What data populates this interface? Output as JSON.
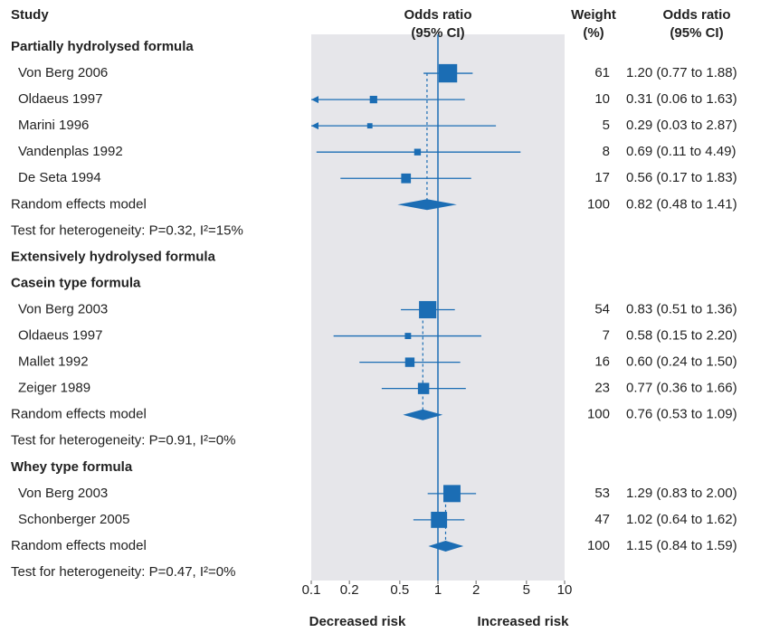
{
  "chart_data": {
    "type": "forest",
    "color": "#1b6db4",
    "panel_color": "#e6e6ea",
    "log_x": true,
    "xlim": [
      0.1,
      10
    ],
    "xticks": [
      0.1,
      0.2,
      0.5,
      1,
      2,
      5,
      10
    ],
    "reference": 1,
    "x_label_left": "Decreased risk",
    "x_label_right": "Increased risk",
    "headers": {
      "study": "Study",
      "plot": [
        "Odds ratio",
        "(95% CI)"
      ],
      "weight": [
        "Weight",
        "(%)"
      ],
      "ci": [
        "Odds ratio",
        "(95% CI)"
      ]
    },
    "rows": [
      {
        "kind": "group",
        "label": "Partially hydrolysed formula"
      },
      {
        "kind": "study",
        "label": "Von Berg 2006",
        "or": 1.2,
        "lower": 0.77,
        "upper": 1.88,
        "weight": 61,
        "ci_label": "1.20 (0.77 to 1.88)"
      },
      {
        "kind": "study",
        "label": "Oldaeus 1997",
        "or": 0.31,
        "lower": 0.06,
        "upper": 1.63,
        "weight": 10,
        "ci_label": "0.31 (0.06 to 1.63)"
      },
      {
        "kind": "study",
        "label": "Marini 1996",
        "or": 0.29,
        "lower": 0.03,
        "upper": 2.87,
        "weight": 5,
        "ci_label": "0.29 (0.03 to 2.87)"
      },
      {
        "kind": "study",
        "label": "Vandenplas 1992",
        "or": 0.69,
        "lower": 0.11,
        "upper": 4.49,
        "weight": 8,
        "ci_label": "0.69 (0.11 to 4.49)"
      },
      {
        "kind": "study",
        "label": "De Seta 1994",
        "or": 0.56,
        "lower": 0.17,
        "upper": 1.83,
        "weight": 17,
        "ci_label": "0.56 (0.17 to 1.83)"
      },
      {
        "kind": "pooled",
        "label": "Random effects model",
        "or": 0.82,
        "lower": 0.48,
        "upper": 1.41,
        "weight": 100,
        "ci_label": "0.82 (0.48 to 1.41)"
      },
      {
        "kind": "note",
        "label": "Test for heterogeneity: P=0.32, I²=15%"
      },
      {
        "kind": "group",
        "label": "Extensively hydrolysed formula"
      },
      {
        "kind": "group",
        "label": "Casein type formula"
      },
      {
        "kind": "study",
        "label": "Von Berg 2003",
        "or": 0.83,
        "lower": 0.51,
        "upper": 1.36,
        "weight": 54,
        "ci_label": "0.83 (0.51 to 1.36)"
      },
      {
        "kind": "study",
        "label": "Oldaeus 1997",
        "or": 0.58,
        "lower": 0.15,
        "upper": 2.2,
        "weight": 7,
        "ci_label": "0.58 (0.15 to 2.20)"
      },
      {
        "kind": "study",
        "label": "Mallet 1992",
        "or": 0.6,
        "lower": 0.24,
        "upper": 1.5,
        "weight": 16,
        "ci_label": "0.60 (0.24 to 1.50)"
      },
      {
        "kind": "study",
        "label": "Zeiger 1989",
        "or": 0.77,
        "lower": 0.36,
        "upper": 1.66,
        "weight": 23,
        "ci_label": "0.77 (0.36 to 1.66)"
      },
      {
        "kind": "pooled",
        "label": "Random effects model",
        "or": 0.76,
        "lower": 0.53,
        "upper": 1.09,
        "weight": 100,
        "ci_label": "0.76 (0.53 to 1.09)"
      },
      {
        "kind": "note",
        "label": "Test for heterogeneity: P=0.91, I²=0%"
      },
      {
        "kind": "group",
        "label": "Whey type formula"
      },
      {
        "kind": "study",
        "label": "Von Berg 2003",
        "or": 1.29,
        "lower": 0.83,
        "upper": 2.0,
        "weight": 53,
        "ci_label": "1.29 (0.83 to 2.00)"
      },
      {
        "kind": "study",
        "label": "Schonberger 2005",
        "or": 1.02,
        "lower": 0.64,
        "upper": 1.62,
        "weight": 47,
        "ci_label": "1.02 (0.64 to 1.62)"
      },
      {
        "kind": "pooled",
        "label": "Random effects model",
        "or": 1.15,
        "lower": 0.84,
        "upper": 1.59,
        "weight": 100,
        "ci_label": "1.15 (0.84 to 1.59)"
      },
      {
        "kind": "note",
        "label": "Test for heterogeneity: P=0.47, I²=0%"
      }
    ]
  }
}
